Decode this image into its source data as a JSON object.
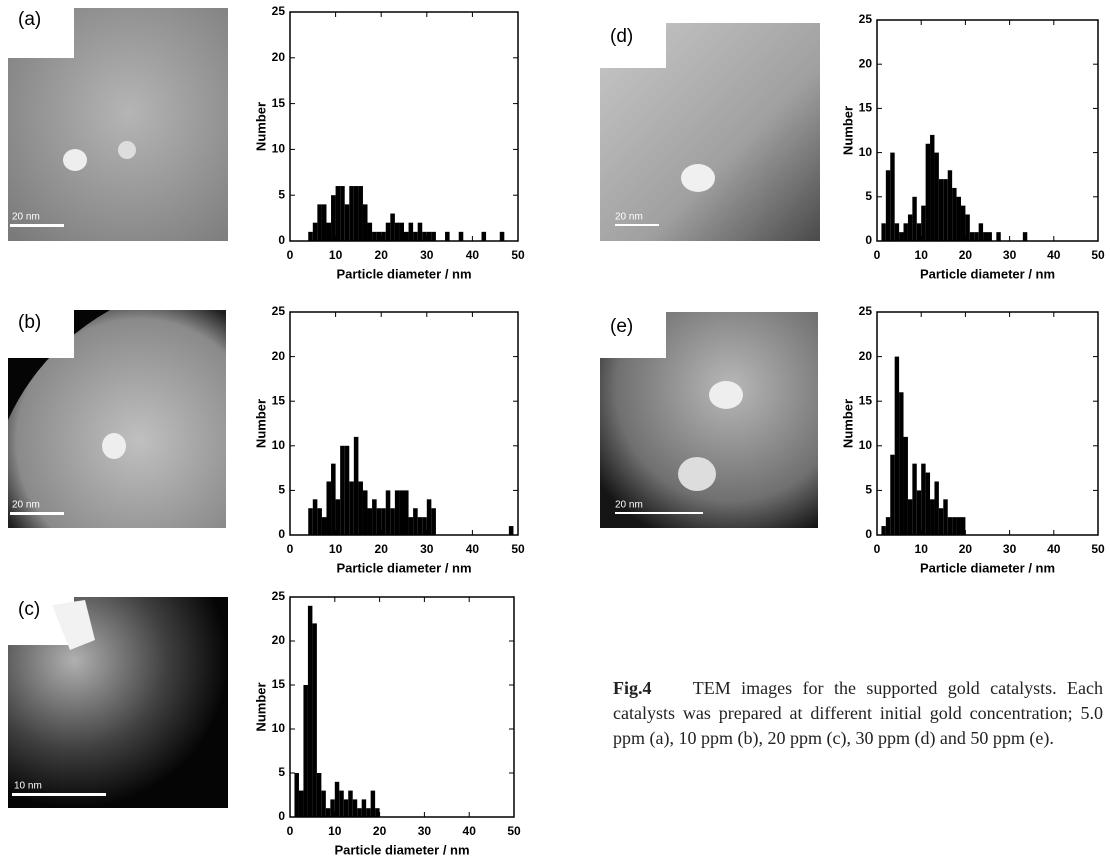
{
  "chart_data": [
    {
      "type": "histogram",
      "xlabel": "Particle diameter / nm",
      "ylabel": "Number",
      "color": "#000000",
      "bins": [
        0,
        1,
        2,
        3,
        4,
        5,
        6,
        7,
        8,
        9,
        10,
        11,
        12,
        13,
        14,
        15,
        16,
        17,
        18,
        19,
        20,
        21,
        22,
        23,
        24,
        25,
        26,
        27,
        28,
        29,
        30,
        31,
        32,
        33,
        34,
        35,
        36,
        37,
        38,
        39,
        40,
        41,
        42,
        43,
        44,
        45,
        46,
        47,
        48,
        49,
        50
      ],
      "counts": [
        0,
        0,
        0,
        0,
        1,
        2,
        4,
        4,
        2,
        5,
        6,
        6,
        4,
        6,
        6,
        6,
        4,
        2,
        1,
        1,
        1,
        2,
        3,
        2,
        2,
        1,
        2,
        1,
        2,
        1,
        1,
        1,
        0,
        0,
        1,
        0,
        0,
        1,
        0,
        0,
        0,
        0,
        1,
        0,
        0,
        0,
        1,
        0,
        0,
        0
      ],
      "xlim": [
        0,
        50
      ],
      "xticks": [
        0,
        10,
        20,
        30,
        40,
        50
      ],
      "ylim": [
        0,
        25
      ],
      "yticks": [
        0,
        5,
        10,
        15,
        20,
        25
      ]
    },
    {
      "type": "histogram",
      "xlabel": "Particle diameter / nm",
      "ylabel": "Number",
      "color": "#000000",
      "bins": [
        0,
        1,
        2,
        3,
        4,
        5,
        6,
        7,
        8,
        9,
        10,
        11,
        12,
        13,
        14,
        15,
        16,
        17,
        18,
        19,
        20,
        21,
        22,
        23,
        24,
        25,
        26,
        27,
        28,
        29,
        30,
        31,
        32,
        33,
        34,
        35,
        36,
        37,
        38,
        39,
        40,
        41,
        42,
        43,
        44,
        45,
        46,
        47,
        48,
        49,
        50
      ],
      "counts": [
        0,
        0,
        0,
        0,
        3,
        4,
        3,
        2,
        6,
        8,
        4,
        10,
        10,
        6,
        11,
        6,
        5,
        3,
        4,
        3,
        3,
        5,
        3,
        5,
        5,
        5,
        2,
        3,
        2,
        2,
        4,
        3,
        0,
        0,
        0,
        0,
        0,
        0,
        0,
        0,
        0,
        0,
        0,
        0,
        0,
        0,
        0,
        0,
        1,
        0
      ],
      "xlim": [
        0,
        50
      ],
      "xticks": [
        0,
        10,
        20,
        30,
        40,
        50
      ],
      "ylim": [
        0,
        25
      ],
      "yticks": [
        0,
        5,
        10,
        15,
        20,
        25
      ]
    },
    {
      "type": "histogram",
      "xlabel": "Particle diameter / nm",
      "ylabel": "Number",
      "color": "#000000",
      "bins": [
        0,
        1,
        2,
        3,
        4,
        5,
        6,
        7,
        8,
        9,
        10,
        11,
        12,
        13,
        14,
        15,
        16,
        17,
        18,
        19,
        20,
        21,
        22,
        23,
        24,
        25,
        26,
        27,
        28,
        29,
        30,
        31,
        32,
        33,
        34,
        35,
        36,
        37,
        38,
        39,
        40,
        41,
        42,
        43,
        44,
        45,
        46,
        47,
        48,
        49,
        50
      ],
      "counts": [
        0,
        5,
        3,
        15,
        24,
        22,
        5,
        3,
        1,
        2,
        4,
        3,
        2,
        3,
        2,
        1,
        2,
        1,
        3,
        1,
        0,
        0,
        0,
        0,
        0,
        0,
        0,
        0,
        0,
        0,
        0,
        0,
        0,
        0,
        0,
        0,
        0,
        0,
        0,
        0,
        0,
        0,
        0,
        0,
        0,
        0,
        0,
        0,
        0,
        0
      ],
      "xlim": [
        0,
        50
      ],
      "xticks": [
        0,
        10,
        20,
        30,
        40,
        50
      ],
      "ylim": [
        0,
        25
      ],
      "yticks": [
        0,
        5,
        10,
        15,
        20,
        25
      ]
    },
    {
      "type": "histogram",
      "xlabel": "Particle diameter / nm",
      "ylabel": "Number",
      "color": "#000000",
      "bins": [
        0,
        1,
        2,
        3,
        4,
        5,
        6,
        7,
        8,
        9,
        10,
        11,
        12,
        13,
        14,
        15,
        16,
        17,
        18,
        19,
        20,
        21,
        22,
        23,
        24,
        25,
        26,
        27,
        28,
        29,
        30,
        31,
        32,
        33,
        34,
        35,
        36,
        37,
        38,
        39,
        40,
        41,
        42,
        43,
        44,
        45,
        46,
        47,
        48,
        49,
        50
      ],
      "counts": [
        0,
        2,
        8,
        10,
        2,
        1,
        2,
        3,
        5,
        2,
        4,
        11,
        12,
        10,
        7,
        7,
        8,
        6,
        5,
        4,
        3,
        1,
        1,
        2,
        1,
        1,
        0,
        1,
        0,
        0,
        0,
        0,
        0,
        1,
        0,
        0,
        0,
        0,
        0,
        0,
        0,
        0,
        0,
        0,
        0,
        0,
        0,
        0,
        0,
        0
      ],
      "xlim": [
        0,
        50
      ],
      "xticks": [
        0,
        10,
        20,
        30,
        40,
        50
      ],
      "ylim": [
        0,
        25
      ],
      "yticks": [
        0,
        5,
        10,
        15,
        20,
        25
      ]
    },
    {
      "type": "histogram",
      "xlabel": "Particle diameter / nm",
      "ylabel": "Number",
      "color": "#000000",
      "bins": [
        0,
        1,
        2,
        3,
        4,
        5,
        6,
        7,
        8,
        9,
        10,
        11,
        12,
        13,
        14,
        15,
        16,
        17,
        18,
        19,
        20,
        21,
        22,
        23,
        24,
        25,
        26,
        27,
        28,
        29,
        30,
        31,
        32,
        33,
        34,
        35,
        36,
        37,
        38,
        39,
        40,
        41,
        42,
        43,
        44,
        45,
        46,
        47,
        48,
        49,
        50
      ],
      "counts": [
        0,
        1,
        2,
        9,
        20,
        16,
        11,
        4,
        8,
        5,
        8,
        7,
        4,
        6,
        3,
        4,
        2,
        2,
        2,
        2,
        0,
        0,
        0,
        0,
        0,
        0,
        0,
        0,
        0,
        0,
        0,
        0,
        0,
        0,
        0,
        0,
        0,
        0,
        0,
        0,
        0,
        0,
        0,
        0,
        0,
        0,
        0,
        0,
        0,
        0
      ],
      "xlim": [
        0,
        50
      ],
      "xticks": [
        0,
        10,
        20,
        30,
        40,
        50
      ],
      "ylim": [
        0,
        25
      ],
      "yticks": [
        0,
        5,
        10,
        15,
        20,
        25
      ]
    }
  ],
  "images": [
    {
      "label": "(a)",
      "scale": "20 nm"
    },
    {
      "label": "(b)",
      "scale": "20 nm"
    },
    {
      "label": "(c)",
      "scale": "10 nm"
    },
    {
      "label": "(d)",
      "scale": "20 nm"
    },
    {
      "label": "(e)",
      "scale": "20 nm"
    }
  ],
  "caption": {
    "label": "Fig.4",
    "text": "TEM images for the supported gold catalysts. Each catalysts was prepared at different initial gold concentration; 5.0 ppm (a), 10 ppm (b), 20 ppm (c), 30 ppm (d) and 50 ppm (e)."
  }
}
